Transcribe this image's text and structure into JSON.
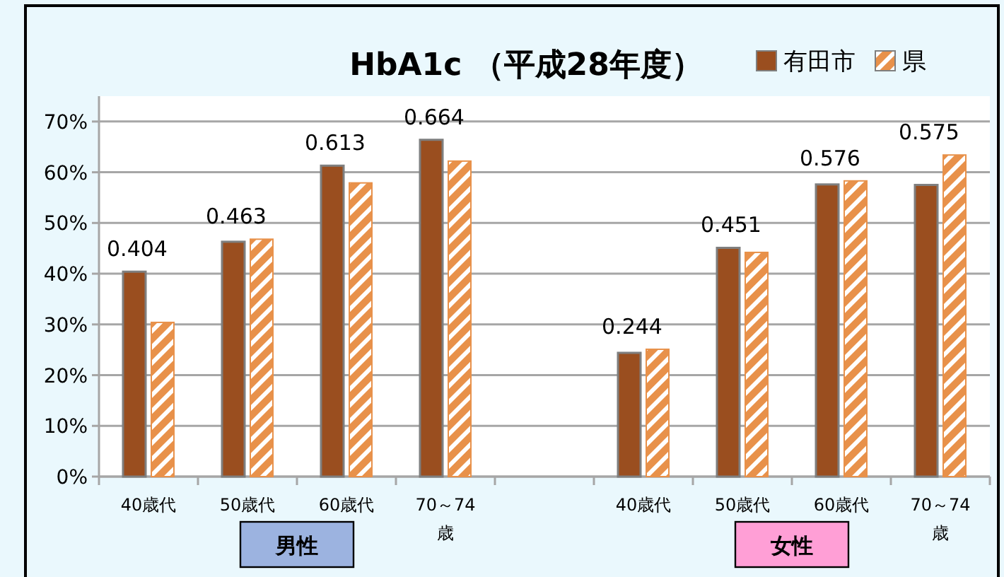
{
  "chart_data": {
    "type": "bar",
    "title": "HbA1c （平成28年度）",
    "categories": [
      "40歳代",
      "50歳代",
      "60歳代",
      "70～74歳",
      null,
      "40歳代",
      "50歳代",
      "60歳代",
      "70～74歳"
    ],
    "series": [
      {
        "name": "有田市",
        "color": "#9a4e1f",
        "values": [
          0.404,
          0.463,
          0.613,
          0.664,
          null,
          0.244,
          0.451,
          0.576,
          0.575
        ],
        "value_labels": [
          "0.404",
          "0.463",
          "0.613",
          "0.664",
          null,
          "0.244",
          "0.451",
          "0.576",
          "0.575"
        ]
      },
      {
        "name": "県",
        "color": "#e8914a",
        "values": [
          0.304,
          0.468,
          0.579,
          0.622,
          null,
          0.251,
          0.442,
          0.583,
          0.634
        ]
      }
    ],
    "ylim": [
      0,
      0.75
    ],
    "yticks": [
      {
        "value": 0,
        "label": "0%"
      },
      {
        "value": 0.1,
        "label": "10%"
      },
      {
        "value": 0.2,
        "label": "20%"
      },
      {
        "value": 0.3,
        "label": "30%"
      },
      {
        "value": 0.4,
        "label": "40%"
      },
      {
        "value": 0.5,
        "label": "50%"
      },
      {
        "value": 0.6,
        "label": "60%"
      },
      {
        "value": 0.7,
        "label": "70%"
      }
    ],
    "grid": "y",
    "legend": "top right",
    "annotations": [
      "男性",
      "女性"
    ]
  }
}
